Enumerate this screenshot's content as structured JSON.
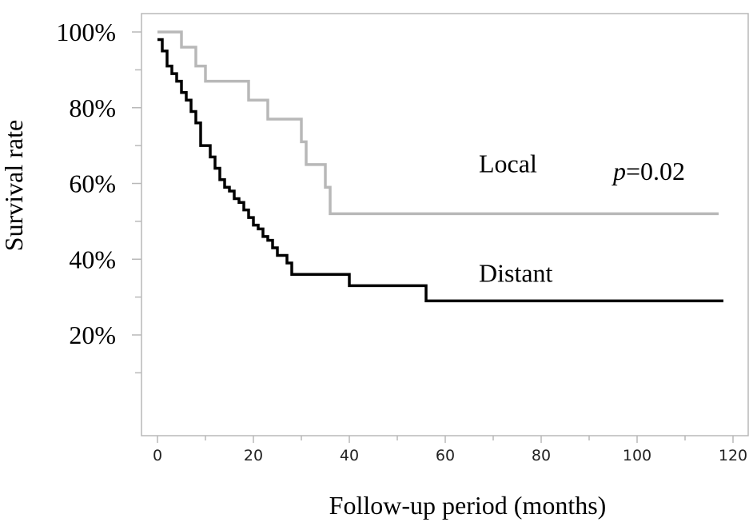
{
  "chart_data": {
    "type": "line",
    "title": "",
    "xlabel": "Follow-up period (months)",
    "ylabel": "Survival rate",
    "xlim": [
      -4,
      120
    ],
    "ylim": [
      0,
      100
    ],
    "x_ticks": [
      0,
      20,
      40,
      60,
      80,
      100,
      120
    ],
    "x_tick_labels": [
      "0",
      "20",
      "40",
      "60",
      "80",
      "100",
      "120"
    ],
    "y_ticks": [
      20,
      40,
      60,
      80,
      100
    ],
    "y_tick_labels": [
      "20%",
      "40%",
      "60%",
      "80%",
      "100%"
    ],
    "grid": false,
    "step": true,
    "annotation": {
      "text_italic": "p",
      "text_rest": "=0.02",
      "x": 95,
      "y": 61
    },
    "series": [
      {
        "name": "Local",
        "color": "#b8b8b8",
        "label_at": [
          67,
          63
        ],
        "points": [
          [
            0,
            100
          ],
          [
            5,
            96
          ],
          [
            8,
            91
          ],
          [
            10,
            87
          ],
          [
            19,
            82
          ],
          [
            23,
            77
          ],
          [
            30,
            71
          ],
          [
            31,
            65
          ],
          [
            35,
            59
          ],
          [
            36,
            52
          ],
          [
            117,
            52
          ]
        ]
      },
      {
        "name": "Distant",
        "color": "#000000",
        "label_at": [
          67,
          34
        ],
        "points": [
          [
            0,
            98
          ],
          [
            1,
            95
          ],
          [
            2,
            91
          ],
          [
            3,
            89
          ],
          [
            4,
            87
          ],
          [
            5,
            84
          ],
          [
            6,
            82
          ],
          [
            7,
            79
          ],
          [
            8,
            76
          ],
          [
            9,
            70
          ],
          [
            11,
            67
          ],
          [
            12,
            64
          ],
          [
            13,
            61
          ],
          [
            14,
            59
          ],
          [
            15,
            58
          ],
          [
            16,
            56
          ],
          [
            17,
            55
          ],
          [
            18,
            53
          ],
          [
            19,
            51
          ],
          [
            20,
            49
          ],
          [
            21,
            48
          ],
          [
            22,
            46
          ],
          [
            23,
            45
          ],
          [
            24,
            43
          ],
          [
            25,
            41
          ],
          [
            27,
            39
          ],
          [
            28,
            36
          ],
          [
            40,
            33
          ],
          [
            56,
            29
          ],
          [
            118,
            29
          ]
        ]
      }
    ]
  }
}
